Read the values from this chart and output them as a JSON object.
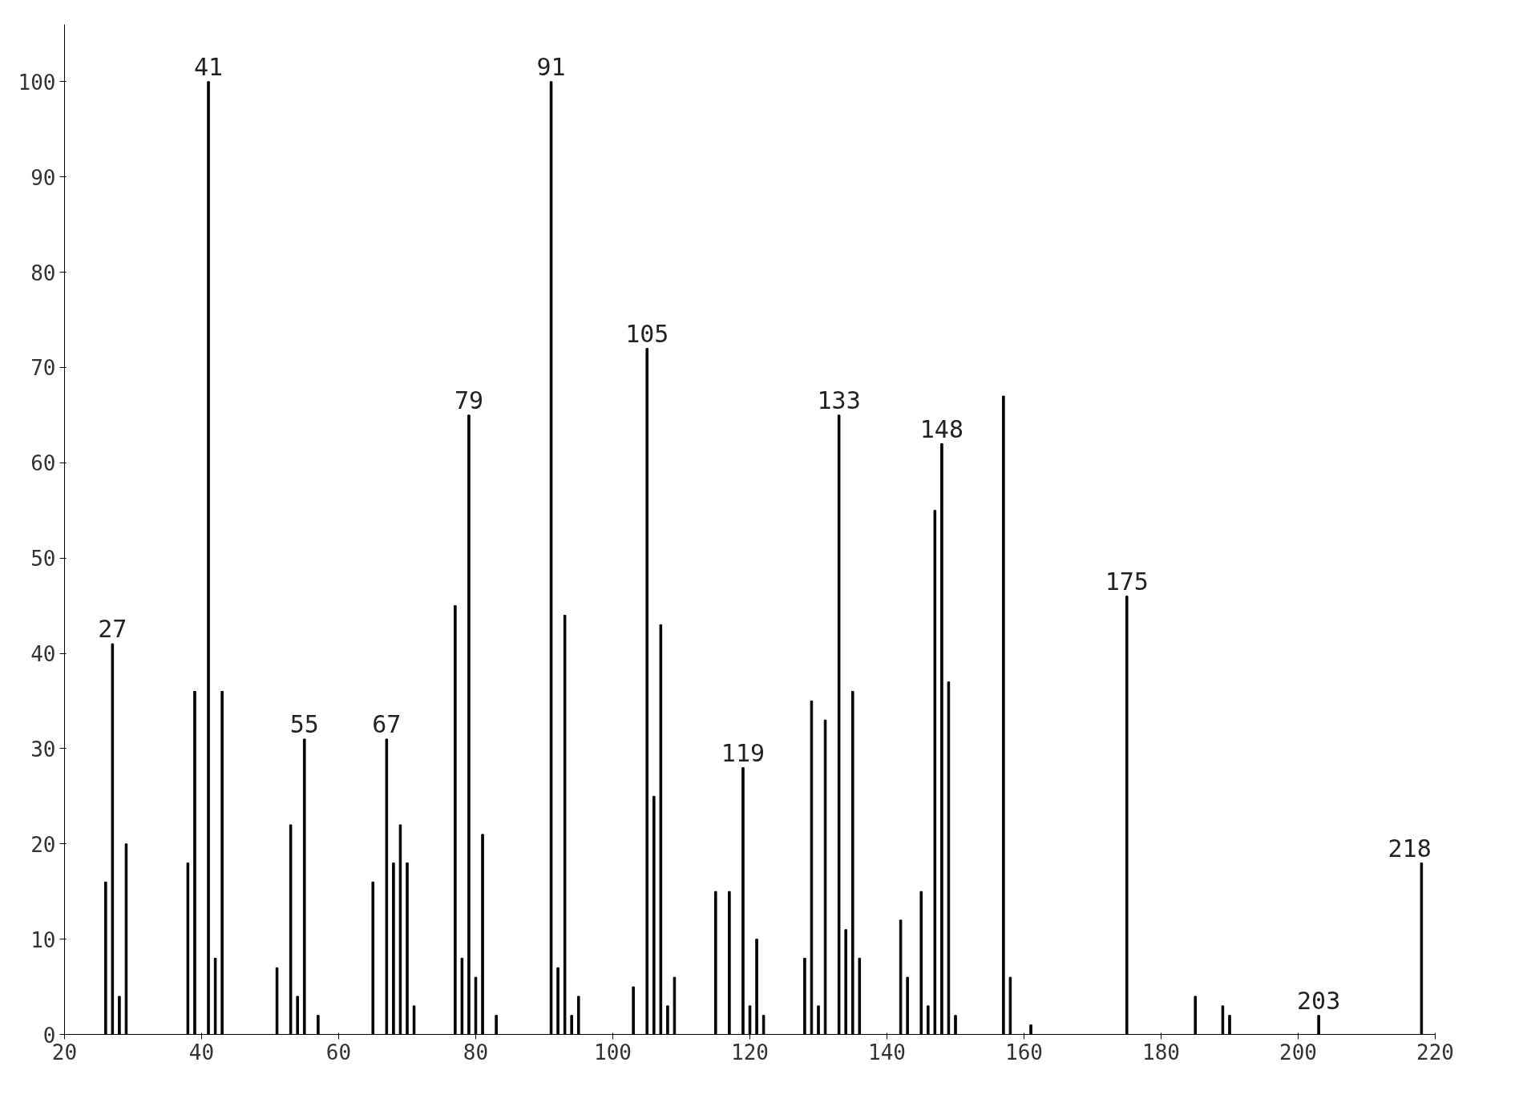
{
  "chart_data": {
    "type": "bar",
    "color": "#000000",
    "x": [
      26,
      27,
      28,
      29,
      38,
      39,
      41,
      42,
      43,
      51,
      53,
      54,
      55,
      57,
      65,
      67,
      68,
      69,
      70,
      71,
      77,
      78,
      79,
      80,
      81,
      83,
      91,
      92,
      93,
      94,
      95,
      103,
      105,
      106,
      107,
      108,
      109,
      115,
      117,
      119,
      120,
      121,
      122,
      128,
      129,
      130,
      131,
      133,
      134,
      135,
      136,
      142,
      143,
      145,
      146,
      147,
      148,
      149,
      150,
      157,
      158,
      161,
      175,
      185,
      189,
      190,
      203,
      218
    ],
    "values": [
      16,
      41,
      4,
      20,
      18,
      36,
      100,
      8,
      36,
      7,
      22,
      4,
      31,
      2,
      16,
      31,
      18,
      22,
      18,
      3,
      45,
      8,
      65,
      6,
      21,
      2,
      100,
      7,
      44,
      2,
      4,
      5,
      72,
      25,
      43,
      3,
      6,
      15,
      15,
      28,
      3,
      10,
      2,
      8,
      35,
      3,
      33,
      65,
      11,
      36,
      8,
      12,
      6,
      15,
      3,
      55,
      62,
      37,
      2,
      67,
      6,
      1,
      46,
      4,
      3,
      2,
      2,
      18
    ],
    "annotations": [
      {
        "text": "27",
        "x": 27,
        "y": 41
      },
      {
        "text": "41",
        "x": 41,
        "y": 100
      },
      {
        "text": "55",
        "x": 55,
        "y": 31
      },
      {
        "text": "67",
        "x": 67,
        "y": 31
      },
      {
        "text": "79",
        "x": 79,
        "y": 65
      },
      {
        "text": "91",
        "x": 91,
        "y": 100
      },
      {
        "text": "105",
        "x": 105,
        "y": 72
      },
      {
        "text": "119",
        "x": 119,
        "y": 28
      },
      {
        "text": "133",
        "x": 133,
        "y": 65
      },
      {
        "text": "148",
        "x": 148,
        "y": 62
      },
      {
        "text": "175",
        "x": 175,
        "y": 46
      },
      {
        "text": "203",
        "x": 203,
        "y": 2
      },
      {
        "text": "218",
        "x": 218,
        "y": 18
      }
    ],
    "xlim": [
      20,
      220
    ],
    "ylim": [
      0,
      106
    ],
    "xticks": [
      20,
      40,
      60,
      80,
      100,
      120,
      140,
      160,
      180,
      200,
      220
    ],
    "yticks": [
      0,
      10,
      20,
      30,
      40,
      50,
      60,
      70,
      80,
      90,
      100
    ],
    "grid": false
  }
}
